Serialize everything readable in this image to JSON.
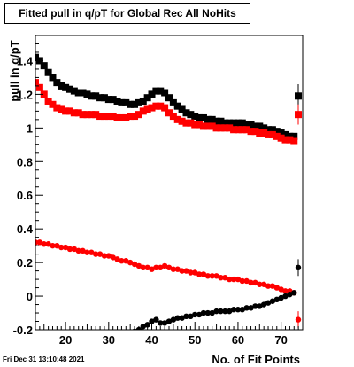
{
  "header": {
    "title": "Fitted pull in q/pT for Global Rec All NoHits"
  },
  "footer": {
    "timestamp": "Fri Dec 31 13:10:48 2021"
  },
  "chart_data": {
    "type": "scatter",
    "title": "Fitted pull in q/pT for Global Rec All NoHits",
    "xlabel": "No. of Fit Points",
    "ylabel": "pull in q/pT",
    "xlim": [
      13,
      75
    ],
    "ylim": [
      -0.2,
      1.55
    ],
    "x_ticks": [
      20,
      30,
      40,
      50,
      60,
      70
    ],
    "y_ticks": [
      -0.2,
      0,
      0.2,
      0.4,
      0.6,
      0.8,
      1,
      1.2,
      1.4
    ],
    "grid": false,
    "legend": "none",
    "series": [
      {
        "color": "#000000",
        "marker": "square",
        "x": [
          13,
          14,
          15,
          16,
          17,
          18,
          19,
          20,
          21,
          22,
          23,
          24,
          25,
          26,
          27,
          28,
          29,
          30,
          31,
          32,
          33,
          34,
          35,
          36,
          37,
          38,
          39,
          40,
          41,
          42,
          43,
          44,
          45,
          46,
          47,
          48,
          49,
          50,
          51,
          52,
          53,
          54,
          55,
          56,
          57,
          58,
          59,
          60,
          61,
          62,
          63,
          64,
          65,
          66,
          67,
          68,
          69,
          70,
          71,
          72,
          73
        ],
        "y": [
          1.42,
          1.4,
          1.37,
          1.33,
          1.3,
          1.27,
          1.25,
          1.24,
          1.23,
          1.22,
          1.21,
          1.21,
          1.2,
          1.19,
          1.19,
          1.18,
          1.18,
          1.17,
          1.17,
          1.16,
          1.15,
          1.15,
          1.14,
          1.14,
          1.15,
          1.16,
          1.18,
          1.2,
          1.22,
          1.22,
          1.21,
          1.18,
          1.15,
          1.13,
          1.11,
          1.09,
          1.08,
          1.07,
          1.06,
          1.06,
          1.05,
          1.05,
          1.04,
          1.04,
          1.03,
          1.03,
          1.03,
          1.03,
          1.03,
          1.02,
          1.02,
          1.01,
          1.01,
          1.0,
          0.99,
          0.99,
          0.98,
          0.97,
          0.96,
          0.95,
          0.95
        ]
      },
      {
        "color": "#ff0000",
        "marker": "square",
        "x": [
          13,
          14,
          15,
          16,
          17,
          18,
          19,
          20,
          21,
          22,
          23,
          24,
          25,
          26,
          27,
          28,
          29,
          30,
          31,
          32,
          33,
          34,
          35,
          36,
          37,
          38,
          39,
          40,
          41,
          42,
          43,
          44,
          45,
          46,
          47,
          48,
          49,
          50,
          51,
          52,
          53,
          54,
          55,
          56,
          57,
          58,
          59,
          60,
          61,
          62,
          63,
          64,
          65,
          66,
          67,
          68,
          69,
          70,
          71,
          72,
          73
        ],
        "y": [
          1.27,
          1.24,
          1.2,
          1.16,
          1.14,
          1.12,
          1.11,
          1.1,
          1.1,
          1.09,
          1.09,
          1.08,
          1.08,
          1.08,
          1.08,
          1.07,
          1.07,
          1.07,
          1.07,
          1.06,
          1.06,
          1.06,
          1.07,
          1.07,
          1.08,
          1.1,
          1.11,
          1.12,
          1.13,
          1.13,
          1.12,
          1.09,
          1.07,
          1.05,
          1.04,
          1.03,
          1.03,
          1.02,
          1.02,
          1.01,
          1.01,
          1.01,
          1.0,
          1.0,
          1.0,
          1.0,
          0.99,
          0.99,
          0.99,
          0.99,
          0.98,
          0.98,
          0.97,
          0.97,
          0.96,
          0.96,
          0.95,
          0.94,
          0.93,
          0.93,
          0.92
        ]
      },
      {
        "color": "#ff0000",
        "marker": "circle",
        "x": [
          13,
          14,
          15,
          16,
          17,
          18,
          19,
          20,
          21,
          22,
          23,
          24,
          25,
          26,
          27,
          28,
          29,
          30,
          31,
          32,
          33,
          34,
          35,
          36,
          37,
          38,
          39,
          40,
          41,
          42,
          43,
          44,
          45,
          46,
          47,
          48,
          49,
          50,
          51,
          52,
          53,
          54,
          55,
          56,
          57,
          58,
          59,
          60,
          61,
          62,
          63,
          64,
          65,
          66,
          67,
          68,
          69,
          70,
          71,
          72,
          73
        ],
        "y": [
          0.32,
          0.32,
          0.31,
          0.31,
          0.3,
          0.3,
          0.29,
          0.29,
          0.28,
          0.28,
          0.27,
          0.27,
          0.26,
          0.26,
          0.25,
          0.25,
          0.24,
          0.24,
          0.23,
          0.22,
          0.21,
          0.21,
          0.2,
          0.19,
          0.18,
          0.17,
          0.17,
          0.16,
          0.17,
          0.17,
          0.18,
          0.17,
          0.16,
          0.16,
          0.15,
          0.15,
          0.14,
          0.14,
          0.13,
          0.13,
          0.12,
          0.12,
          0.12,
          0.11,
          0.11,
          0.1,
          0.1,
          0.1,
          0.09,
          0.09,
          0.08,
          0.08,
          0.07,
          0.07,
          0.06,
          0.06,
          0.05,
          0.04,
          0.03,
          0.03,
          0.02
        ]
      },
      {
        "color": "#000000",
        "marker": "circle",
        "x": [
          35,
          36,
          37,
          38,
          39,
          40,
          41,
          42,
          43,
          44,
          45,
          46,
          47,
          48,
          49,
          50,
          51,
          52,
          53,
          54,
          55,
          56,
          57,
          58,
          59,
          60,
          61,
          62,
          63,
          64,
          65,
          66,
          67,
          68,
          69,
          70,
          71,
          72,
          73
        ],
        "y": [
          -0.22,
          -0.21,
          -0.2,
          -0.18,
          -0.17,
          -0.15,
          -0.14,
          -0.16,
          -0.16,
          -0.15,
          -0.14,
          -0.13,
          -0.13,
          -0.12,
          -0.12,
          -0.11,
          -0.11,
          -0.1,
          -0.1,
          -0.1,
          -0.09,
          -0.09,
          -0.09,
          -0.09,
          -0.08,
          -0.08,
          -0.08,
          -0.07,
          -0.07,
          -0.06,
          -0.06,
          -0.05,
          -0.04,
          -0.03,
          -0.02,
          -0.01,
          0.0,
          0.01,
          0.02
        ]
      }
    ],
    "summary_points": [
      {
        "color": "#000000",
        "marker": "square",
        "y": 1.19,
        "error": 0.07
      },
      {
        "color": "#ff0000",
        "marker": "square",
        "y": 1.08,
        "error": 0.06
      },
      {
        "color": "#000000",
        "marker": "circle",
        "y": 0.17,
        "error": 0.05
      },
      {
        "color": "#ff0000",
        "marker": "circle",
        "y": -0.14,
        "error": 0.05
      }
    ]
  }
}
